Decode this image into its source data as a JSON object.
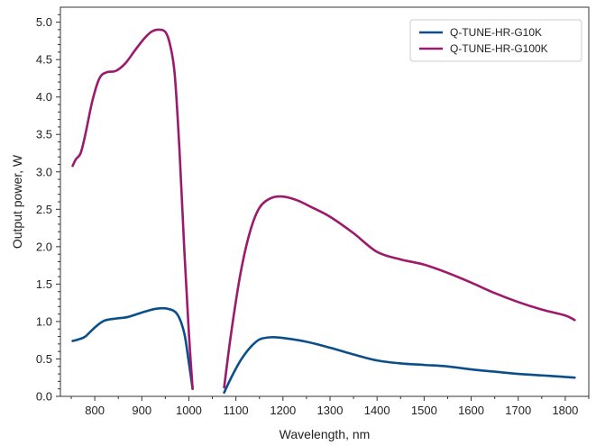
{
  "chart_data": {
    "type": "line",
    "xlabel": "Wavelength, nm",
    "ylabel": "Output power, W",
    "xlim": [
      727,
      1850
    ],
    "ylim": [
      0,
      5.2
    ],
    "xticks": [
      800,
      900,
      1000,
      1100,
      1200,
      1300,
      1400,
      1500,
      1600,
      1700,
      1800
    ],
    "xtick_labels": [
      "800",
      "900",
      "1000",
      "1100",
      "1200",
      "1300",
      "1400",
      "1500",
      "1600",
      "1700",
      "1800"
    ],
    "yticks": [
      0,
      0.5,
      1.0,
      1.5,
      2.0,
      2.5,
      3.0,
      3.5,
      4.0,
      4.5,
      5.0
    ],
    "ytick_labels": [
      "0.0",
      "0.5",
      "1.0",
      "1.5",
      "2.0",
      "2.5",
      "3.0",
      "3.5",
      "4.0",
      "4.5",
      "5.0"
    ],
    "grid": false,
    "legend_position": "top-right",
    "series": [
      {
        "name": "Q-TUNE-HR-G10K",
        "color": "#0b4f8a",
        "segments": [
          [
            [
              753,
              0.74
            ],
            [
              765,
              0.76
            ],
            [
              780,
              0.8
            ],
            [
              800,
              0.92
            ],
            [
              820,
              1.01
            ],
            [
              845,
              1.04
            ],
            [
              870,
              1.06
            ],
            [
              900,
              1.12
            ],
            [
              930,
              1.17
            ],
            [
              955,
              1.17
            ],
            [
              975,
              1.1
            ],
            [
              990,
              0.85
            ],
            [
              1000,
              0.45
            ],
            [
              1008,
              0.1
            ]
          ],
          [
            [
              1075,
              0.05
            ],
            [
              1090,
              0.25
            ],
            [
              1110,
              0.48
            ],
            [
              1130,
              0.65
            ],
            [
              1150,
              0.76
            ],
            [
              1175,
              0.79
            ],
            [
              1200,
              0.78
            ],
            [
              1250,
              0.73
            ],
            [
              1300,
              0.65
            ],
            [
              1350,
              0.56
            ],
            [
              1400,
              0.48
            ],
            [
              1450,
              0.44
            ],
            [
              1500,
              0.42
            ],
            [
              1550,
              0.4
            ],
            [
              1600,
              0.36
            ],
            [
              1650,
              0.33
            ],
            [
              1700,
              0.3
            ],
            [
              1750,
              0.28
            ],
            [
              1800,
              0.26
            ],
            [
              1820,
              0.25
            ]
          ]
        ]
      },
      {
        "name": "Q-TUNE-HR-G100K",
        "color": "#9c1a6c",
        "segments": [
          [
            [
              753,
              3.08
            ],
            [
              760,
              3.17
            ],
            [
              770,
              3.25
            ],
            [
              780,
              3.5
            ],
            [
              795,
              3.95
            ],
            [
              810,
              4.25
            ],
            [
              825,
              4.33
            ],
            [
              845,
              4.35
            ],
            [
              865,
              4.45
            ],
            [
              885,
              4.62
            ],
            [
              905,
              4.78
            ],
            [
              920,
              4.87
            ],
            [
              935,
              4.9
            ],
            [
              950,
              4.87
            ],
            [
              960,
              4.7
            ],
            [
              970,
              4.3
            ],
            [
              980,
              3.3
            ],
            [
              990,
              2.0
            ],
            [
              1000,
              0.85
            ],
            [
              1008,
              0.1
            ]
          ],
          [
            [
              1075,
              0.12
            ],
            [
              1090,
              0.85
            ],
            [
              1110,
              1.65
            ],
            [
              1130,
              2.2
            ],
            [
              1150,
              2.52
            ],
            [
              1175,
              2.65
            ],
            [
              1200,
              2.67
            ],
            [
              1230,
              2.62
            ],
            [
              1260,
              2.53
            ],
            [
              1300,
              2.4
            ],
            [
              1350,
              2.18
            ],
            [
              1400,
              1.93
            ],
            [
              1450,
              1.83
            ],
            [
              1500,
              1.76
            ],
            [
              1550,
              1.65
            ],
            [
              1600,
              1.52
            ],
            [
              1650,
              1.38
            ],
            [
              1700,
              1.26
            ],
            [
              1750,
              1.16
            ],
            [
              1800,
              1.08
            ],
            [
              1820,
              1.02
            ]
          ]
        ]
      }
    ]
  }
}
